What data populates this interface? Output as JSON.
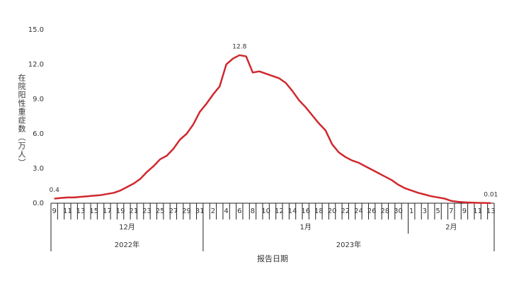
{
  "chart_data": {
    "type": "line",
    "y_label": "在院阳性重症数（万人）",
    "x_label": "报告日期",
    "categories": [
      "9",
      null,
      "11",
      null,
      "13",
      null,
      "15",
      null,
      "17",
      null,
      "19",
      null,
      "21",
      null,
      "23",
      null,
      "25",
      null,
      "27",
      null,
      "29",
      null,
      "31",
      null,
      "2",
      null,
      "4",
      null,
      "6",
      null,
      "8",
      null,
      "10",
      null,
      "12",
      null,
      "14",
      null,
      "16",
      null,
      "18",
      null,
      "20",
      null,
      "22",
      null,
      "24",
      null,
      "26",
      null,
      "28",
      null,
      "30",
      null,
      "1",
      null,
      "3",
      null,
      "5",
      null,
      "7",
      null,
      "9",
      null,
      "11",
      null,
      "13"
    ],
    "month_labels": [
      "12月",
      "1月",
      "2月"
    ],
    "year_labels": [
      "2022年",
      "2023年"
    ],
    "series": [
      {
        "name": "在院阳性重症数",
        "color": "#d0282e",
        "values": [
          0.4,
          0.45,
          0.5,
          0.5,
          0.55,
          0.6,
          0.65,
          0.7,
          0.8,
          0.9,
          1.1,
          1.4,
          1.7,
          2.1,
          2.7,
          3.2,
          3.8,
          4.1,
          4.7,
          5.5,
          6.0,
          6.8,
          7.9,
          8.6,
          9.4,
          10.1,
          12.0,
          12.5,
          12.8,
          12.7,
          11.3,
          11.4,
          11.2,
          11.0,
          10.8,
          10.4,
          9.7,
          8.9,
          8.3,
          7.6,
          6.9,
          6.3,
          5.1,
          4.4,
          4.0,
          3.7,
          3.5,
          3.2,
          2.9,
          2.6,
          2.3,
          2.0,
          1.6,
          1.3,
          1.1,
          0.9,
          0.75,
          0.6,
          0.5,
          0.4,
          0.2,
          0.12,
          0.08,
          0.05,
          0.03,
          0.02,
          0.01
        ],
        "value_labels": [
          "0.4",
          null,
          null,
          null,
          null,
          null,
          null,
          null,
          null,
          null,
          null,
          null,
          null,
          null,
          null,
          null,
          null,
          null,
          null,
          null,
          null,
          null,
          null,
          null,
          null,
          null,
          null,
          null,
          "12.8",
          null,
          null,
          null,
          null,
          null,
          null,
          null,
          null,
          null,
          null,
          null,
          null,
          null,
          null,
          null,
          null,
          null,
          null,
          null,
          null,
          null,
          null,
          null,
          null,
          null,
          null,
          null,
          null,
          null,
          null,
          null,
          null,
          null,
          null,
          null,
          null,
          null,
          "0.01"
        ]
      }
    ],
    "ylim": [
      0,
      15
    ],
    "yticks": [
      {
        "value": 0,
        "label": "0.0"
      },
      {
        "value": 3,
        "label": "3.0"
      },
      {
        "value": 6,
        "label": "6.0"
      },
      {
        "value": 9,
        "label": "9.0"
      },
      {
        "value": 12,
        "label": "12.0"
      },
      {
        "value": 15,
        "label": "15.0"
      }
    ],
    "grid": false
  }
}
